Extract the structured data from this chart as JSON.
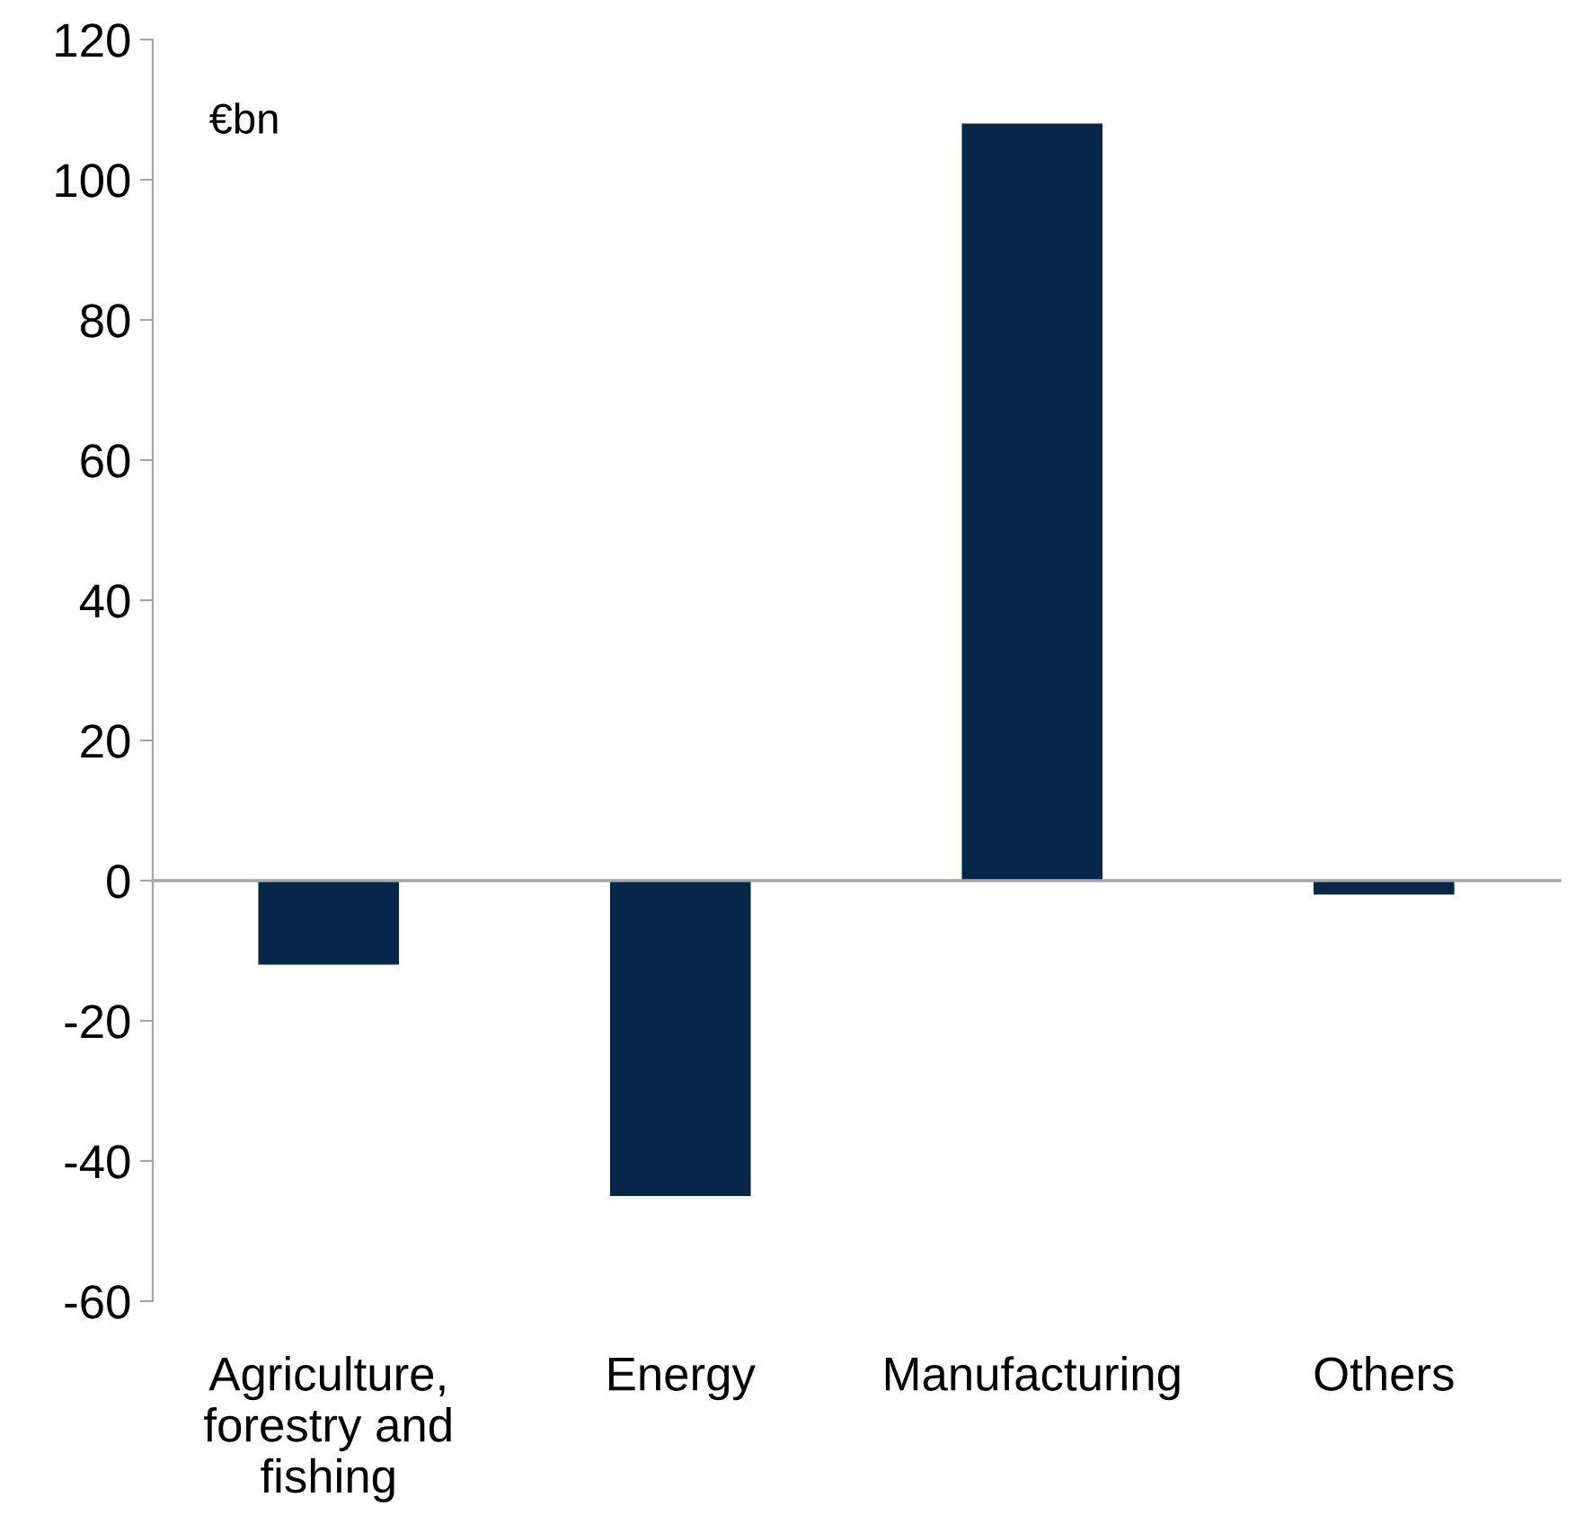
{
  "chart_data": {
    "type": "bar",
    "categories": [
      "Agriculture,\nforestry and\nfishing",
      "Energy",
      "Manufacturing",
      "Others"
    ],
    "values": [
      -12,
      -45,
      108,
      -2
    ],
    "color": "#06274a",
    "ylim": [
      -60,
      120
    ],
    "yticks": [
      -60,
      -40,
      -20,
      0,
      20,
      40,
      60,
      80,
      100,
      120
    ],
    "annotations": [
      "€bn"
    ],
    "legend": false
  }
}
